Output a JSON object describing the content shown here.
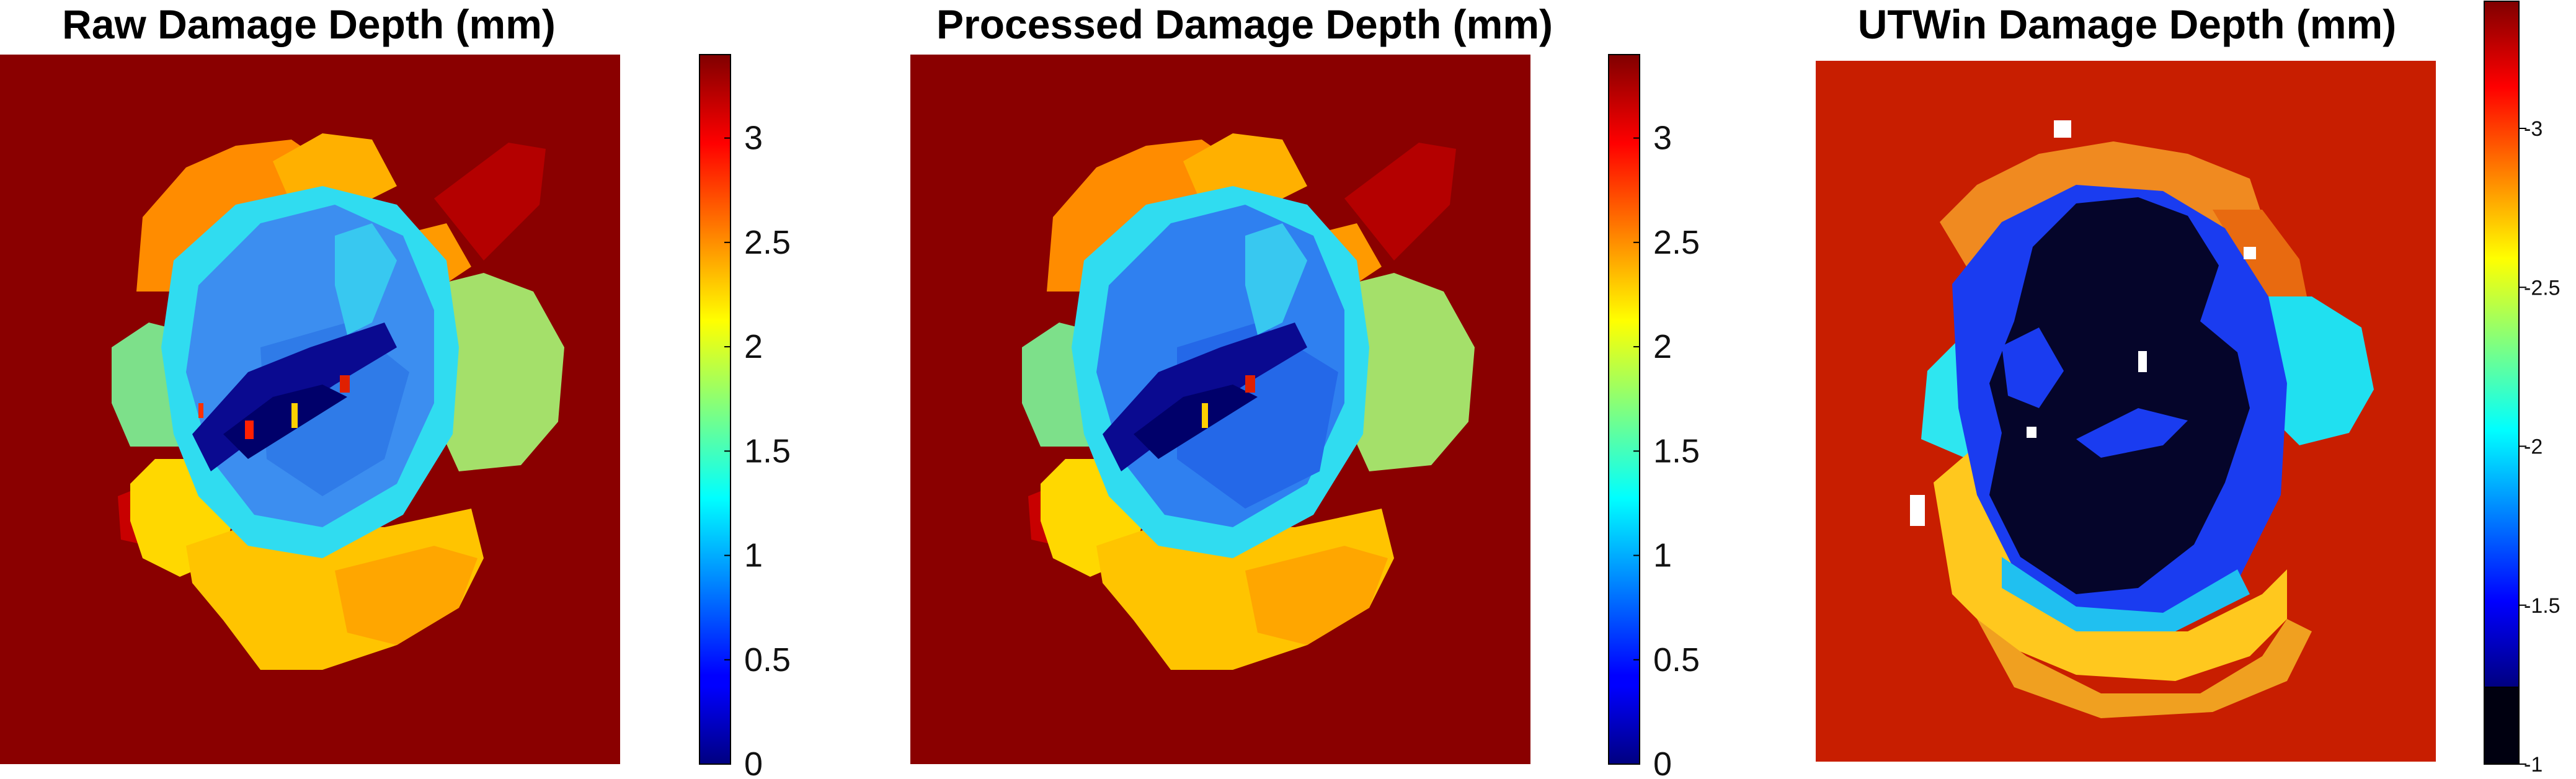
{
  "chart_data": [
    {
      "type": "heatmap",
      "title": "Raw Damage Depth (mm)",
      "colormap": "jet",
      "background_value": 3.4,
      "colorbar": {
        "range": [
          0,
          3.4
        ],
        "ticks": [
          0,
          0.5,
          1,
          1.5,
          2,
          2.5,
          3
        ],
        "tick_labels": [
          "0",
          "0.5",
          "1",
          "1.5",
          "2",
          "2.5",
          "3"
        ]
      },
      "regions": [
        {
          "region": "upper-left lobe",
          "value": 2.7
        },
        {
          "region": "upper-middle lobe",
          "value": 2.5
        },
        {
          "region": "right lobe",
          "value": 1.9
        },
        {
          "region": "left lobe",
          "value": 1.8
        },
        {
          "region": "lower-left lobe",
          "value": 2.4
        },
        {
          "region": "bottom lobe",
          "value": 2.3
        },
        {
          "region": "cyan rim",
          "value": 1.35
        },
        {
          "region": "central core",
          "value": 1.0
        },
        {
          "region": "dark streak",
          "value": 0.1
        },
        {
          "region": "red flecks",
          "value": 3.2
        }
      ]
    },
    {
      "type": "heatmap",
      "title": "Processed Damage Depth (mm)",
      "colormap": "jet",
      "background_value": 3.4,
      "colorbar": {
        "range": [
          0,
          3.4
        ],
        "ticks": [
          0,
          0.5,
          1,
          1.5,
          2,
          2.5,
          3
        ],
        "tick_labels": [
          "0",
          "0.5",
          "1",
          "1.5",
          "2",
          "2.5",
          "3"
        ]
      },
      "regions": [
        {
          "region": "upper-left lobe",
          "value": 2.7
        },
        {
          "region": "upper-middle lobe",
          "value": 2.5
        },
        {
          "region": "right lobe",
          "value": 1.9
        },
        {
          "region": "left lobe",
          "value": 1.8
        },
        {
          "region": "lower-left lobe",
          "value": 2.4
        },
        {
          "region": "bottom lobe",
          "value": 2.3
        },
        {
          "region": "cyan rim",
          "value": 1.35
        },
        {
          "region": "central core",
          "value": 0.9
        },
        {
          "region": "dark streak",
          "value": 0.1
        },
        {
          "region": "red flecks",
          "value": 3.2
        }
      ]
    },
    {
      "type": "heatmap",
      "title": "UTWin Damage Depth (mm)",
      "colormap": "jet",
      "background_value": -3.4,
      "colorbar": {
        "range": [
          -3.4,
          -1.0
        ],
        "direction": "reversed",
        "ticks": [
          -1,
          -1.5,
          -2,
          -2.5,
          -3
        ],
        "tick_labels": [
          "-1",
          "-1.5",
          "-2",
          "-2.5",
          "-3"
        ],
        "lowest_band": "black"
      },
      "regions": [
        {
          "region": "outer orange ring",
          "value": -2.9
        },
        {
          "region": "cyan lobes",
          "value": -2.0
        },
        {
          "region": "yellow bottom edge",
          "value": -2.6
        },
        {
          "region": "blue band",
          "value": -1.5
        },
        {
          "region": "black core",
          "value": -1.0
        },
        {
          "region": "white specks",
          "value": null
        }
      ]
    }
  ]
}
